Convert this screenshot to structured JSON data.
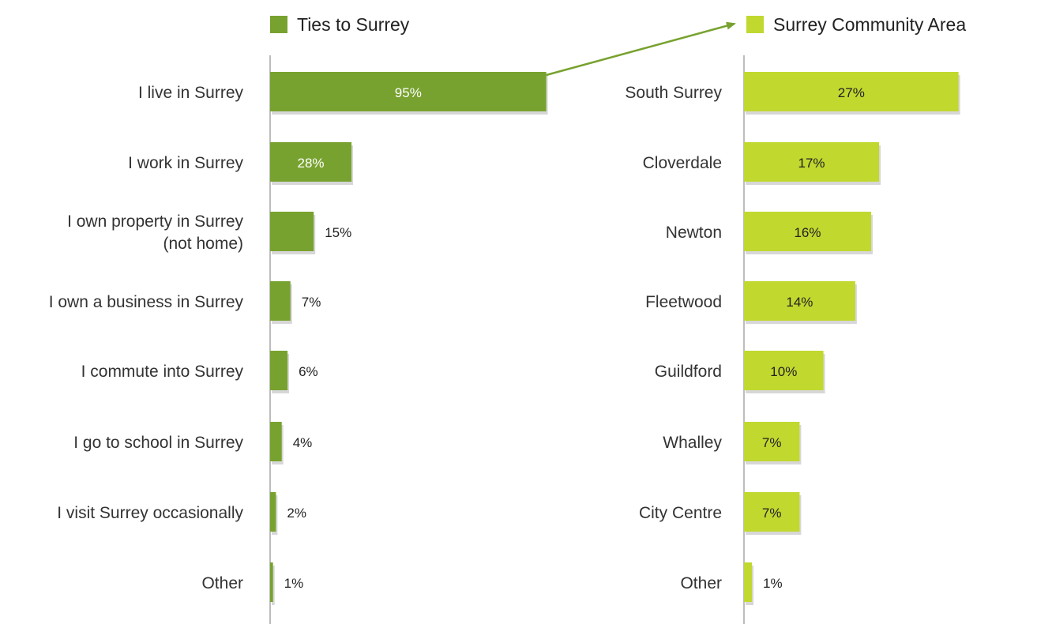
{
  "colors": {
    "ties": "#78a22f",
    "community": "#c1d82f",
    "axis": "#999999",
    "shadow": "#d7d7d7",
    "label_text": "#333333",
    "value_inside_ties": "#ffffff",
    "value_inside_community": "#222222",
    "value_outside": "#222222",
    "arrow": "#78a22f"
  },
  "chart_data": [
    {
      "type": "bar",
      "orientation": "horizontal",
      "legend_label": "Ties to Surrey",
      "categories": [
        "I live in Surrey",
        "I work in Surrey",
        "I own property in Surrey (not home)",
        "I own a business in Surrey",
        "I commute into Surrey",
        "I go to school in Surrey",
        "I visit Surrey occasionally",
        "Other"
      ],
      "category_lines": [
        [
          "I live in Surrey"
        ],
        [
          "I work in Surrey"
        ],
        [
          "I own property in Surrey",
          "(not home)"
        ],
        [
          "I own a business in Surrey"
        ],
        [
          "I commute into Surrey"
        ],
        [
          "I go to school in Surrey"
        ],
        [
          "I visit Surrey occasionally"
        ],
        [
          "Other"
        ]
      ],
      "values": [
        95,
        28,
        15,
        7,
        6,
        4,
        2,
        1
      ],
      "labels": [
        "95%",
        "28%",
        "15%",
        "7%",
        "6%",
        "4%",
        "2%",
        "1%"
      ],
      "unit": "%",
      "xlim": [
        0,
        100
      ],
      "grid": false,
      "legend_position": "top"
    },
    {
      "type": "bar",
      "orientation": "horizontal",
      "legend_label": "Surrey Community Area",
      "categories": [
        "South Surrey",
        "Cloverdale",
        "Newton",
        "Fleetwood",
        "Guildford",
        "Whalley",
        "City Centre",
        "Other"
      ],
      "category_lines": [
        [
          "South Surrey"
        ],
        [
          "Cloverdale"
        ],
        [
          "Newton"
        ],
        [
          "Fleetwood"
        ],
        [
          "Guildford"
        ],
        [
          "Whalley"
        ],
        [
          "City Centre"
        ],
        [
          "Other"
        ]
      ],
      "values": [
        27,
        17,
        16,
        14,
        10,
        7,
        7,
        1
      ],
      "labels": [
        "27%",
        "17%",
        "16%",
        "14%",
        "10%",
        "7%",
        "7%",
        "1%"
      ],
      "unit": "%",
      "xlim": [
        0,
        100
      ],
      "grid": false,
      "legend_position": "top"
    }
  ]
}
